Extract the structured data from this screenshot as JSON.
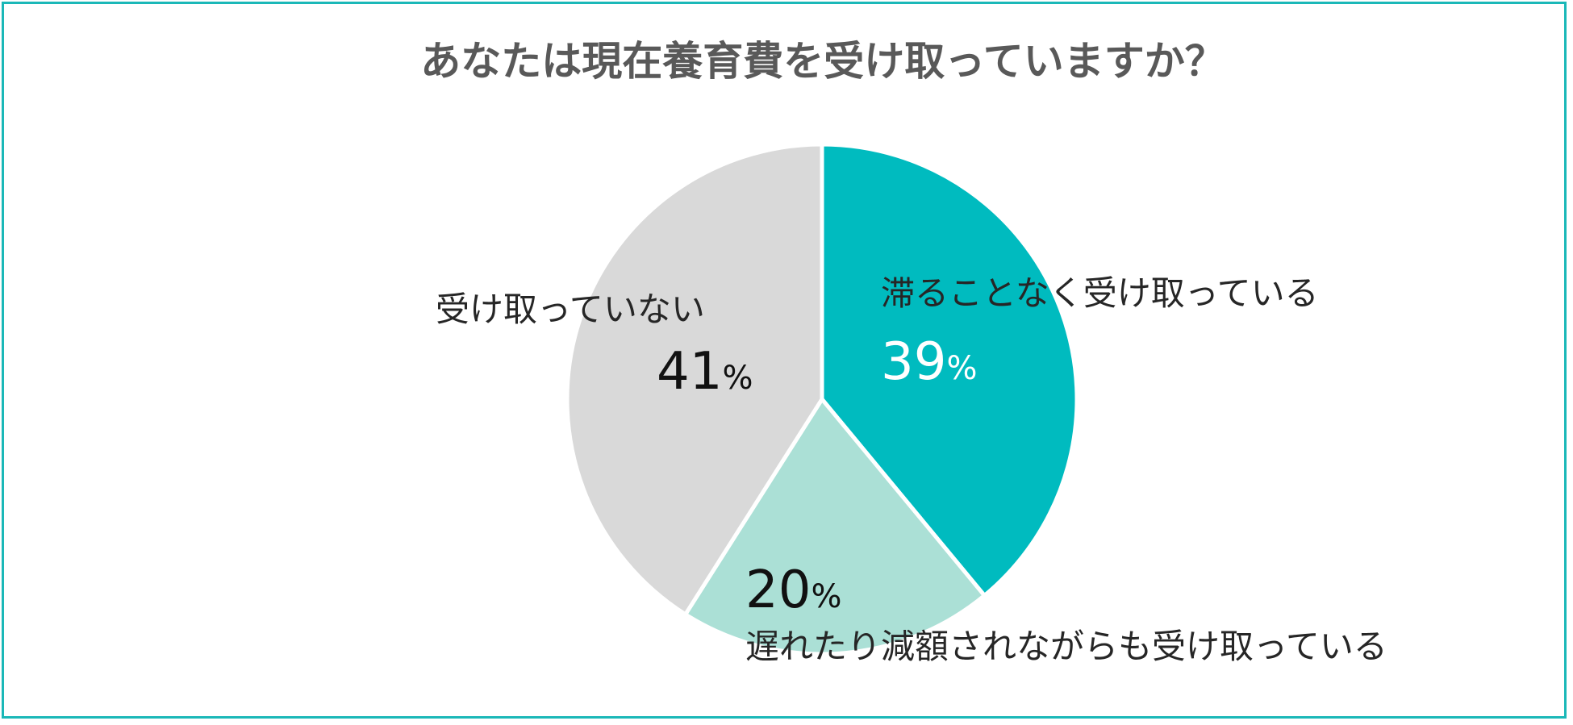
{
  "chart_data": {
    "type": "pie",
    "title": "あなたは現在養育費を受け取っていますか？",
    "unit": "%",
    "slices": [
      {
        "label": "滞ることなく受け取っている",
        "value": 39,
        "color": "#00bbbf",
        "value_text_color": "#ffffff"
      },
      {
        "label": "遅れたり減額されながらも受け取っている",
        "value": 20,
        "color": "#abe0d6",
        "value_text_color": "#111111"
      },
      {
        "label": "受け取っていない",
        "value": 41,
        "color": "#d9d9d9",
        "value_text_color": "#111111"
      }
    ],
    "start_angle_deg": 0,
    "direction": "clockwise",
    "slice_border_color": "#ffffff",
    "legend": "none"
  },
  "frame": {
    "border_color": "#1bb8b8"
  }
}
